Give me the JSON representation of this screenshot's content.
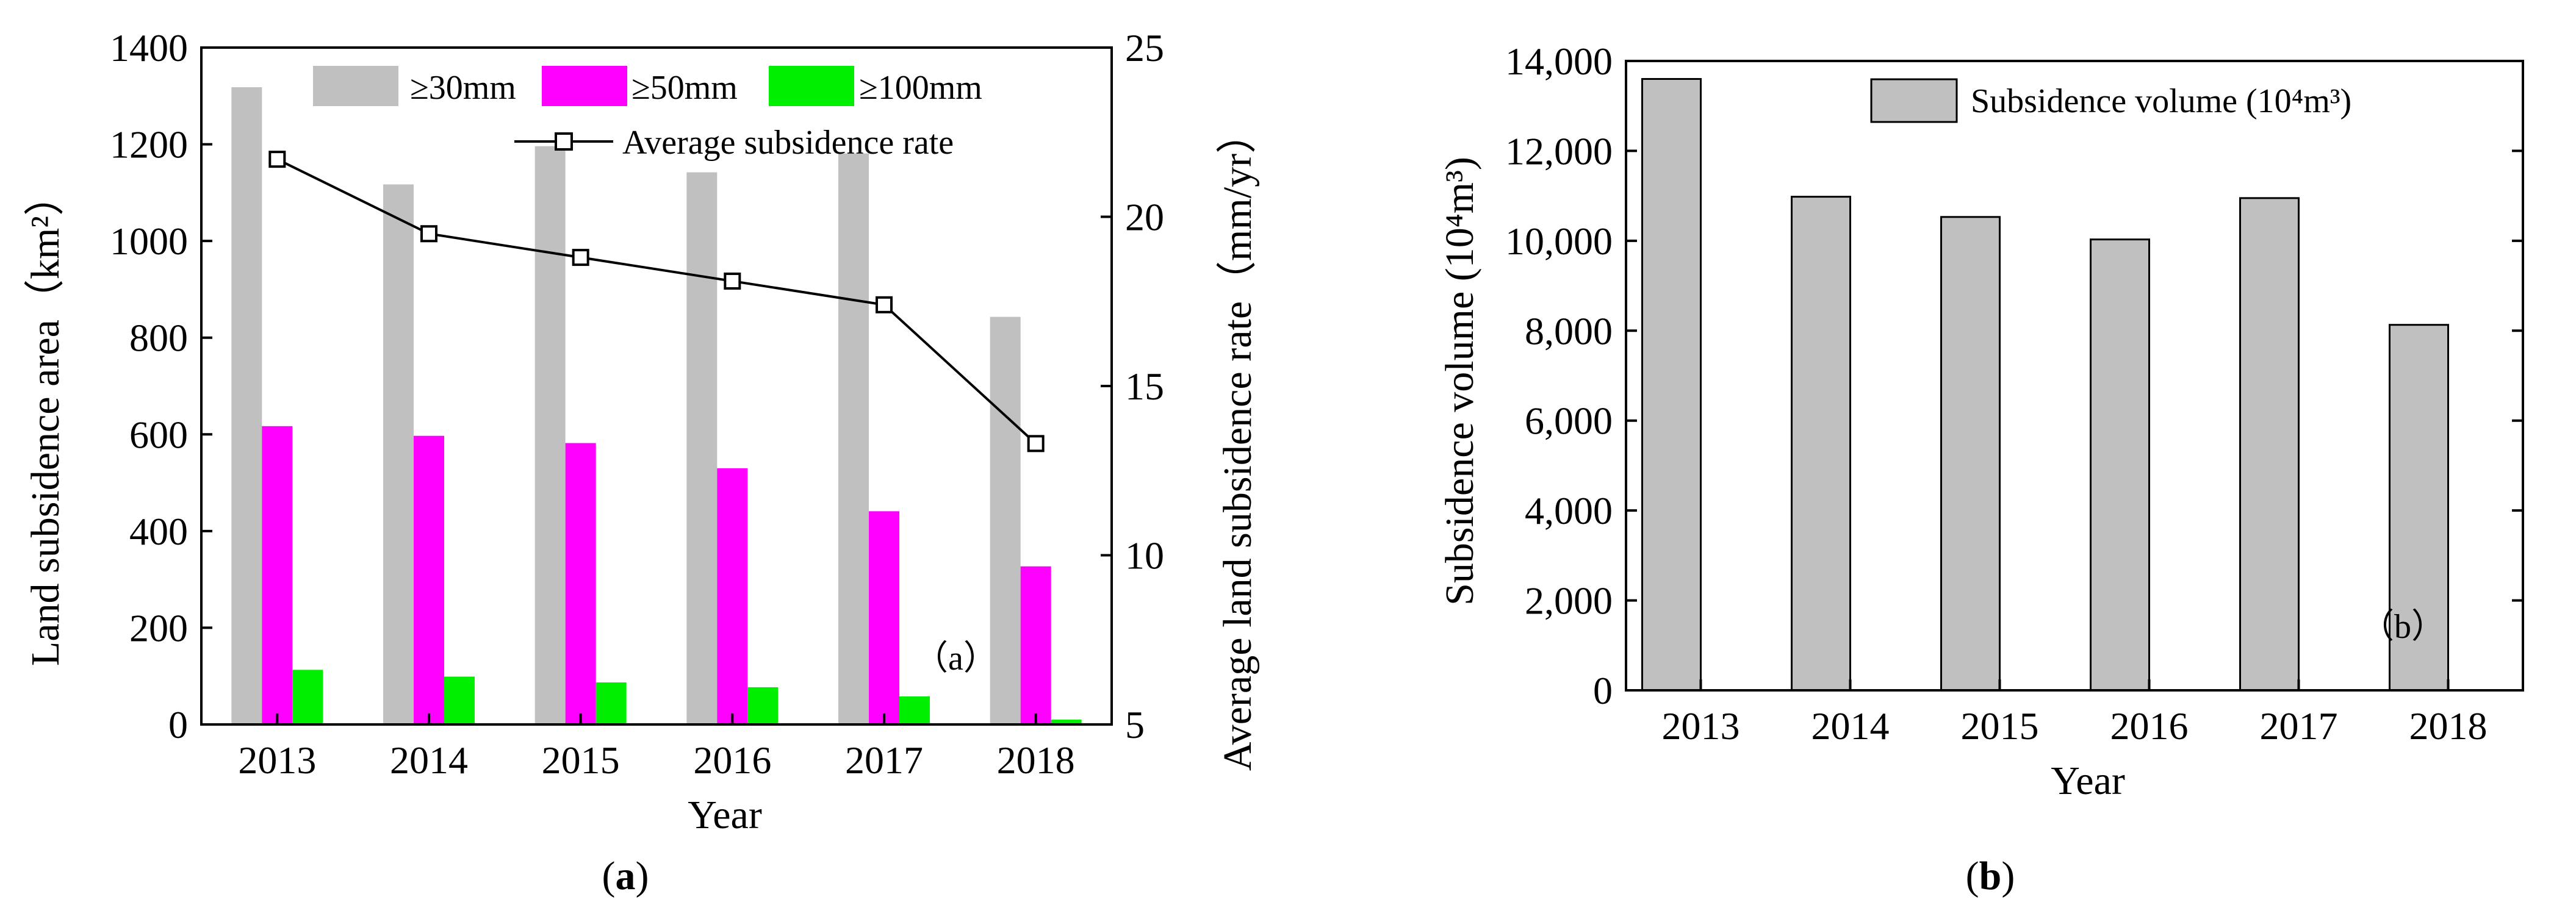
{
  "chart_data": [
    {
      "id": "a",
      "type": "bar",
      "panel_label": "(a)",
      "panel_label_parts": [
        "(",
        "a",
        ")"
      ],
      "inner_label": "（a）",
      "categories": [
        "2013",
        "2014",
        "2015",
        "2016",
        "2017",
        "2018"
      ],
      "series": [
        {
          "name": "≥30mm",
          "color": "#c0c0c0",
          "values": [
            1318,
            1117,
            1196,
            1142,
            1181,
            843
          ]
        },
        {
          "name": "≥50mm",
          "color": "#ff00ff",
          "values": [
            617,
            597,
            582,
            530,
            441,
            327
          ]
        },
        {
          "name": "≥100mm",
          "color": "#00ee00",
          "values": [
            113,
            99,
            87,
            77,
            58,
            10
          ]
        }
      ],
      "line_series": {
        "name": "Average subsidence rate",
        "axis": "right",
        "values": [
          21.7,
          19.5,
          18.8,
          18.1,
          17.4,
          13.3
        ]
      },
      "xlabel": "Year",
      "ylabel": "Land subsidence area（km²）",
      "ylabel_right": "Average land subsidence rate（mm/yr）",
      "ylim": [
        0,
        1400
      ],
      "yticks": [
        "0",
        "200",
        "400",
        "600",
        "800",
        "1000",
        "1200",
        "1400"
      ],
      "ylim_right": [
        5,
        25
      ],
      "yticks_right": [
        "5",
        "10",
        "15",
        "20",
        "25"
      ],
      "legend_position": "top"
    },
    {
      "id": "b",
      "type": "bar",
      "panel_label": "(b)",
      "panel_label_parts": [
        "(",
        "b",
        ")"
      ],
      "inner_label": "（b）",
      "categories": [
        "2013",
        "2014",
        "2015",
        "2016",
        "2017",
        "2018"
      ],
      "series": [
        {
          "name": "Subsidence volume (10⁴m³)",
          "color": "#c0c0c0",
          "values": [
            13600,
            10980,
            10530,
            10030,
            10950,
            8130
          ]
        }
      ],
      "xlabel": "Year",
      "ylabel": "Subsidence volume (10⁴m³)",
      "ylim": [
        0,
        14000
      ],
      "yticks": [
        "0",
        "2,000",
        "4,000",
        "6,000",
        "8,000",
        "10,000",
        "12,000",
        "14,000"
      ],
      "legend_position": "top-right"
    }
  ]
}
